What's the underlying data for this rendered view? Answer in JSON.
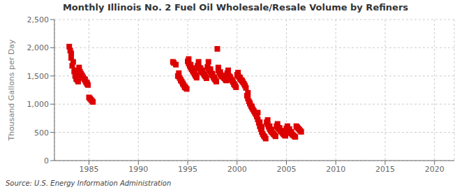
{
  "chart_data": {
    "type": "scatter",
    "title": "Monthly Illinois No. 2 Fuel Oil Wholesale/Resale Volume by Refiners",
    "ylabel": "Thousand Gallons per Day",
    "annotation": "Source: U.S. Energy Information Administration",
    "color": "#dd0000",
    "marker": "square",
    "grid": true,
    "xlim": [
      1981.5,
      2022
    ],
    "ylim": [
      0,
      2500
    ],
    "xticks": [
      1985,
      1990,
      1995,
      2000,
      2005,
      2010,
      2015,
      2020
    ],
    "yticks": [
      0,
      500,
      {
        "value": 1000,
        "label": "1,000"
      },
      {
        "value": 1500,
        "label": "1,500"
      },
      {
        "value": 2000,
        "label": "2,000"
      },
      {
        "value": 2500,
        "label": "2,500"
      }
    ],
    "x": [
      1983.0,
      1983.1,
      1983.2,
      1983.3,
      1983.5,
      1983.6,
      1983.7,
      1983.8,
      1983.9,
      1983.2,
      1983.4,
      1983.6,
      1983.8,
      1984.0,
      1984.1,
      1984.2,
      1984.3,
      1984.4,
      1984.5,
      1984.6,
      1984.7,
      1984.8,
      1984.9,
      1984.0,
      1984.2,
      1984.4,
      1984.6,
      1984.8,
      1985.0,
      1985.1,
      1985.2,
      1985.3,
      1985.4,
      1993.5,
      1993.6,
      1993.8,
      1994.0,
      1994.1,
      1994.2,
      1994.3,
      1994.4,
      1994.5,
      1994.6,
      1994.7,
      1994.8,
      1994.9,
      1994.1,
      1994.3,
      1994.5,
      1994.7,
      1995.0,
      1995.1,
      1995.2,
      1995.3,
      1995.4,
      1995.5,
      1995.6,
      1995.7,
      1995.8,
      1995.9,
      1995.1,
      1995.3,
      1995.5,
      1995.7,
      1995.9,
      1996.0,
      1996.1,
      1996.2,
      1996.3,
      1996.4,
      1996.5,
      1996.6,
      1996.7,
      1996.8,
      1996.9,
      1996.1,
      1996.3,
      1996.5,
      1996.7,
      1997.0,
      1997.1,
      1997.2,
      1997.3,
      1997.4,
      1997.5,
      1997.6,
      1997.7,
      1997.8,
      1997.9,
      1997.1,
      1997.3,
      1997.5,
      1997.7,
      1998.0,
      1998.1,
      1998.2,
      1998.3,
      1998.4,
      1998.5,
      1998.6,
      1998.7,
      1998.8,
      1998.9,
      1998.1,
      1998.3,
      1998.5,
      1999.0,
      1999.1,
      1999.2,
      1999.3,
      1999.4,
      1999.5,
      1999.6,
      1999.7,
      1999.8,
      1999.9,
      1999.1,
      1999.3,
      1999.5,
      1999.7,
      2000.0,
      2000.1,
      2000.2,
      2000.3,
      2000.4,
      2000.5,
      2000.6,
      2000.7,
      2000.8,
      2000.9,
      2000.1,
      2000.3,
      2000.5,
      2001.0,
      2001.1,
      2001.2,
      2001.3,
      2001.4,
      2001.5,
      2001.6,
      2001.7,
      2001.8,
      2001.9,
      2001.1,
      2001.3,
      2001.5,
      2002.0,
      2002.1,
      2002.2,
      2002.3,
      2002.4,
      2002.5,
      2002.6,
      2002.7,
      2002.8,
      2002.9,
      2002.1,
      2002.3,
      2002.5,
      2003.0,
      2003.1,
      2003.2,
      2003.3,
      2003.4,
      2003.5,
      2003.6,
      2003.7,
      2003.8,
      2003.9,
      2003.1,
      2003.3,
      2003.5,
      2004.0,
      2004.1,
      2004.2,
      2004.3,
      2004.4,
      2004.5,
      2004.6,
      2004.7,
      2004.8,
      2004.9,
      2004.1,
      2004.3,
      2004.5,
      2005.0,
      2005.1,
      2005.2,
      2005.3,
      2005.4,
      2005.5,
      2005.6,
      2005.7,
      2005.8,
      2005.9,
      2005.1,
      2005.3,
      2005.5,
      2006.0,
      2006.1,
      2006.2,
      2006.3,
      2006.4,
      2006.5
    ],
    "y": [
      2020,
      1950,
      1820,
      1680,
      1580,
      1500,
      1450,
      1430,
      1400,
      1900,
      1750,
      1600,
      1480,
      1600,
      1570,
      1540,
      1510,
      1480,
      1450,
      1420,
      1390,
      1360,
      1340,
      1650,
      1530,
      1470,
      1440,
      1380,
      1120,
      1100,
      1080,
      1060,
      1040,
      1750,
      1730,
      1700,
      1500,
      1490,
      1460,
      1430,
      1400,
      1370,
      1340,
      1310,
      1290,
      1270,
      1550,
      1420,
      1360,
      1300,
      1760,
      1720,
      1680,
      1650,
      1620,
      1590,
      1560,
      1530,
      1500,
      1470,
      1800,
      1700,
      1640,
      1580,
      1510,
      1680,
      1660,
      1640,
      1610,
      1580,
      1560,
      1540,
      1510,
      1490,
      1460,
      1750,
      1640,
      1600,
      1520,
      1660,
      1630,
      1600,
      1570,
      1540,
      1510,
      1480,
      1450,
      1430,
      1400,
      1750,
      1620,
      1540,
      1470,
      1980,
      1600,
      1560,
      1530,
      1500,
      1490,
      1480,
      1460,
      1440,
      1420,
      1650,
      1570,
      1510,
      1550,
      1530,
      1500,
      1470,
      1440,
      1420,
      1390,
      1360,
      1330,
      1300,
      1600,
      1480,
      1420,
      1350,
      1520,
      1500,
      1480,
      1450,
      1430,
      1410,
      1390,
      1360,
      1330,
      1290,
      1560,
      1470,
      1420,
      1150,
      1100,
      1050,
      1010,
      970,
      940,
      910,
      880,
      850,
      820,
      1200,
      1020,
      960,
      780,
      730,
      670,
      610,
      560,
      510,
      470,
      440,
      420,
      390,
      850,
      680,
      600,
      680,
      640,
      600,
      560,
      530,
      510,
      490,
      470,
      450,
      430,
      720,
      610,
      550,
      610,
      590,
      570,
      550,
      530,
      510,
      490,
      470,
      450,
      440,
      650,
      580,
      530,
      570,
      550,
      530,
      510,
      490,
      480,
      460,
      450,
      430,
      420,
      610,
      560,
      510,
      610,
      590,
      570,
      550,
      530,
      510
    ]
  }
}
